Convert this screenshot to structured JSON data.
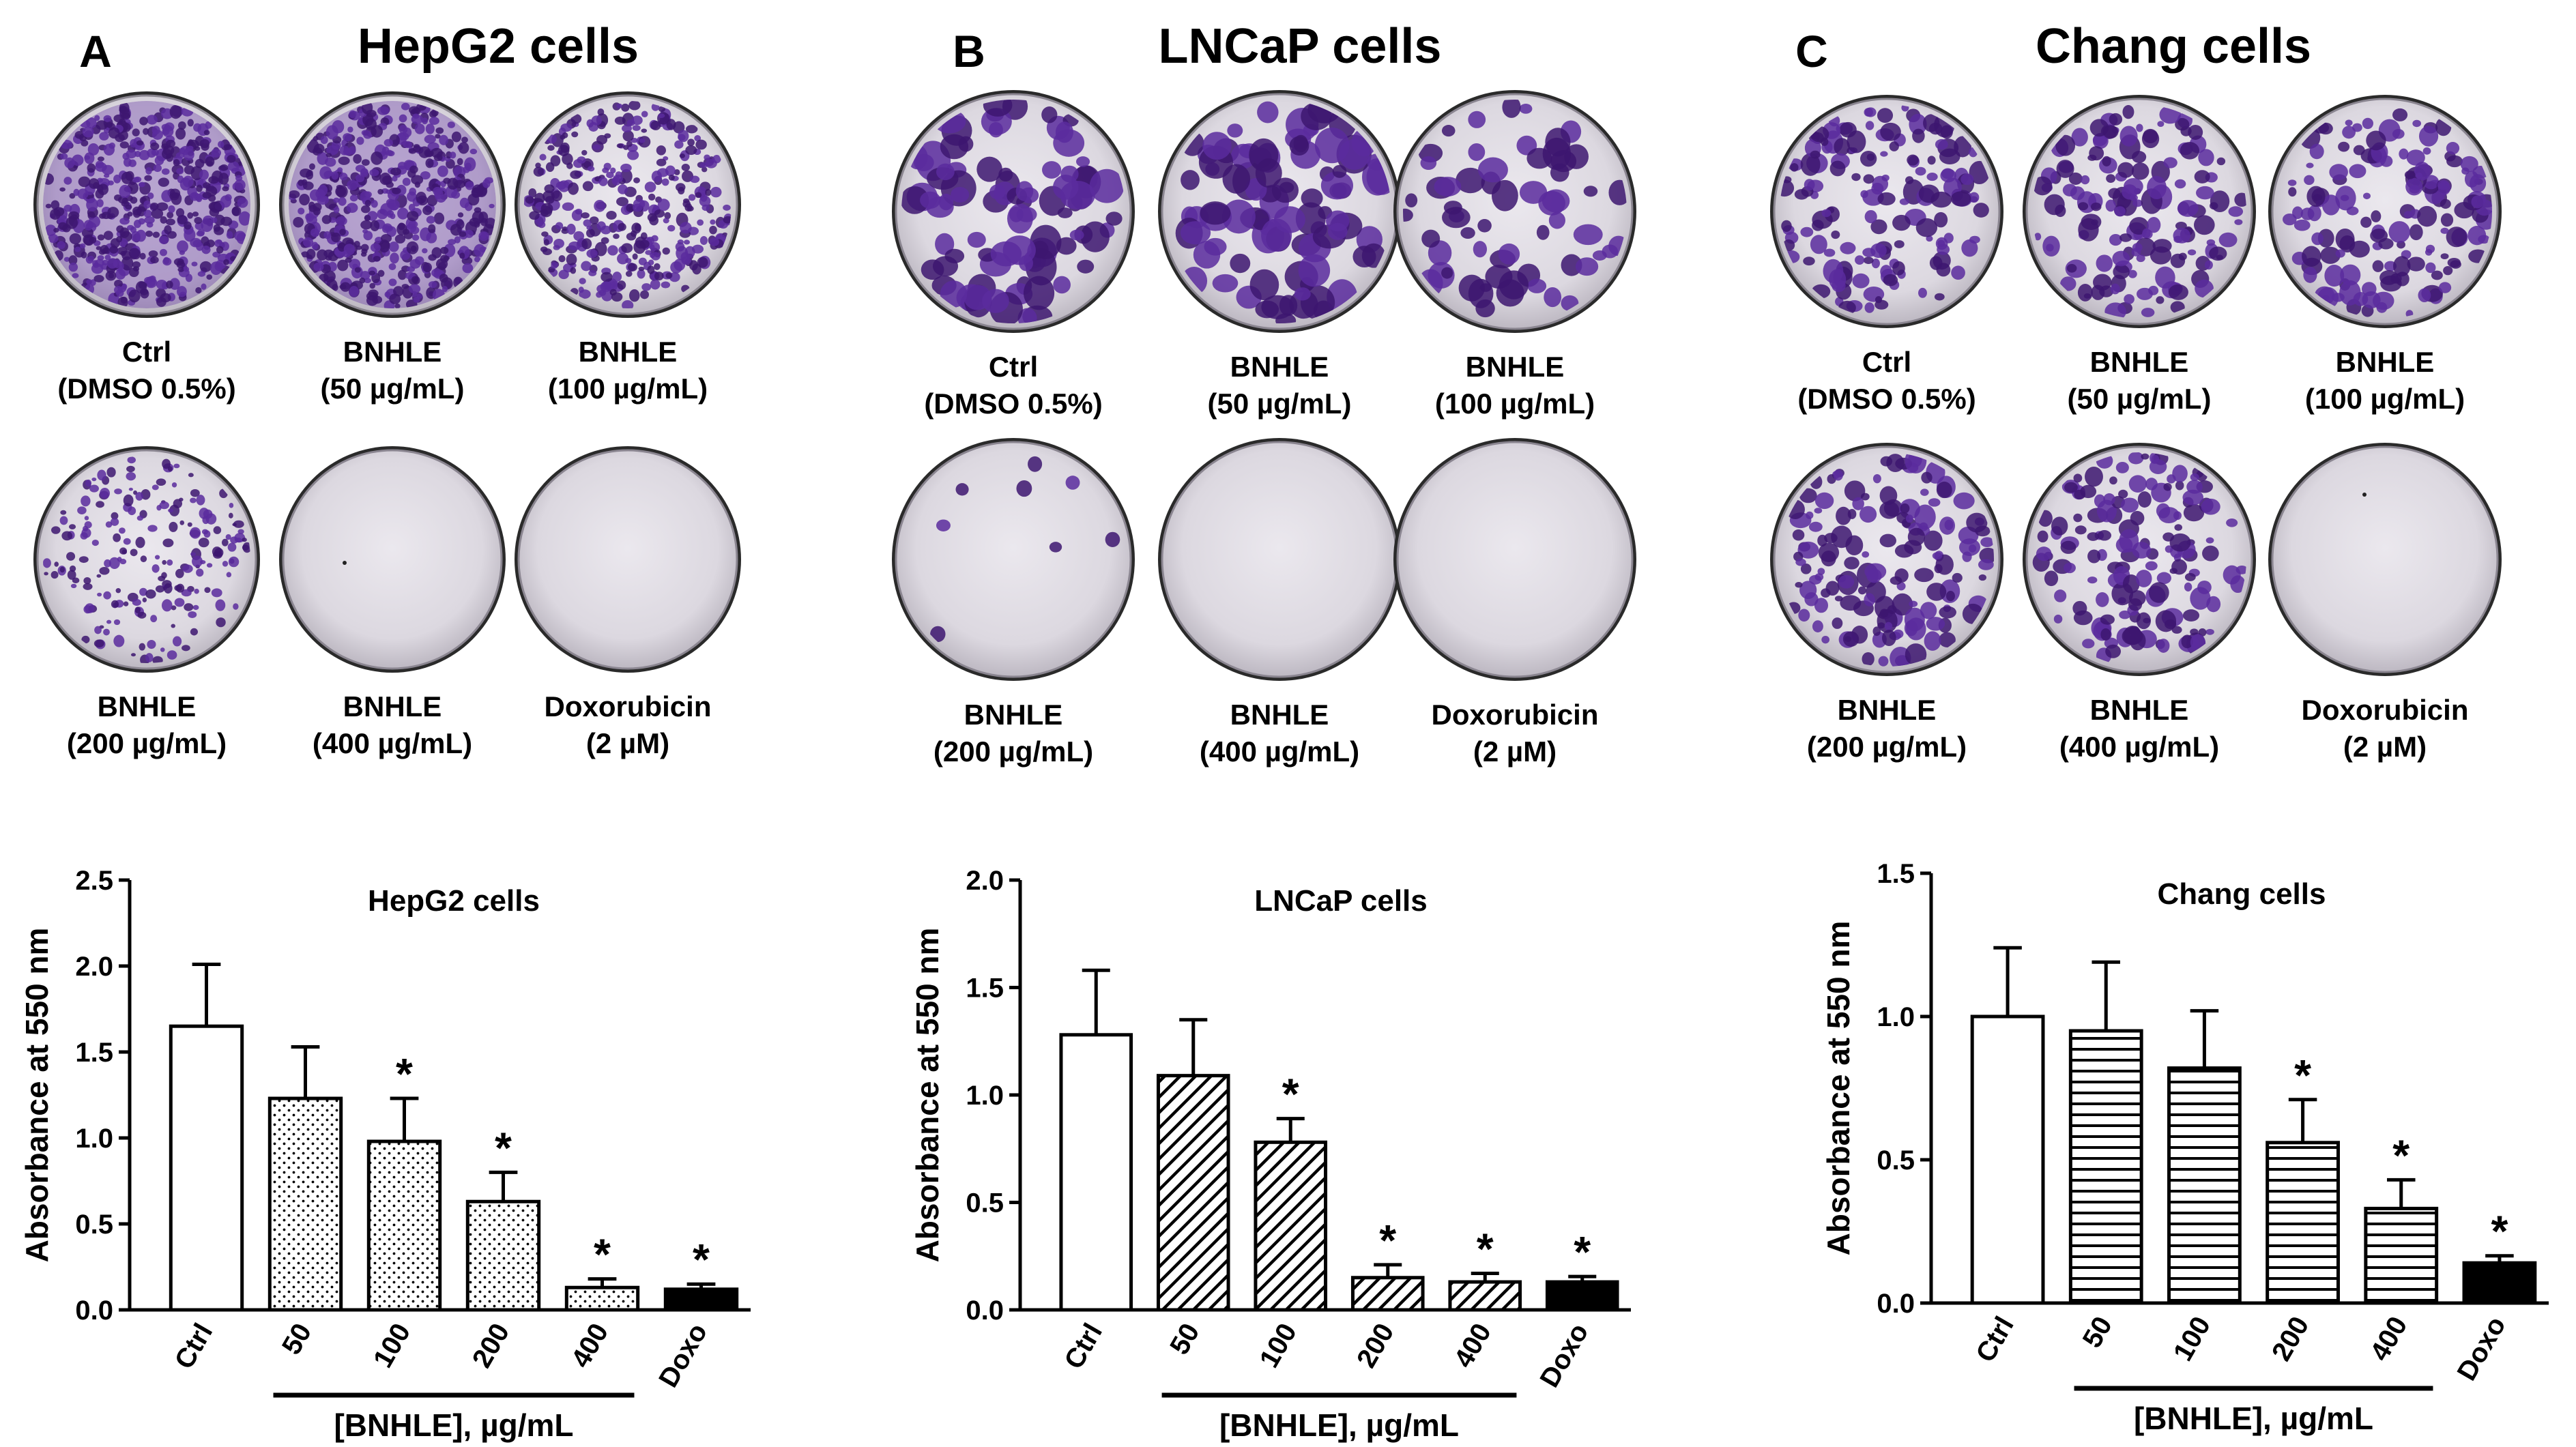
{
  "panels": [
    {
      "letter": "A",
      "title": "HepG2 cells",
      "pattern": "dots",
      "dishes": [
        {
          "line1": "Ctrl",
          "line2": "(DMSO 0.5%)",
          "density": "dense-fine"
        },
        {
          "line1": "BNHLE",
          "line2": "(50 µg/mL)",
          "density": "dense-fine"
        },
        {
          "line1": "BNHLE",
          "line2": "(100 µg/mL)",
          "density": "medium-fine"
        },
        {
          "line1": "BNHLE",
          "line2": "(200 µg/mL)",
          "density": "sparse-fine"
        },
        {
          "line1": "BNHLE",
          "line2": "(400 µg/mL)",
          "density": "none"
        },
        {
          "line1": "Doxorubicin",
          "line2": "(2 µM)",
          "density": "none"
        }
      ]
    },
    {
      "letter": "B",
      "title": "LNCaP cells",
      "pattern": "diagonal",
      "dishes": [
        {
          "line1": "Ctrl",
          "line2": "(DMSO 0.5%)",
          "density": "dense-large"
        },
        {
          "line1": "BNHLE",
          "line2": "(50 µg/mL)",
          "density": "dense-large"
        },
        {
          "line1": "BNHLE",
          "line2": "(100 µg/mL)",
          "density": "medium-large"
        },
        {
          "line1": "BNHLE",
          "line2": "(200 µg/mL)",
          "density": "few"
        },
        {
          "line1": "BNHLE",
          "line2": "(400 µg/mL)",
          "density": "none"
        },
        {
          "line1": "Doxorubicin",
          "line2": "(2 µM)",
          "density": "none"
        }
      ]
    },
    {
      "letter": "C",
      "title": "Chang cells",
      "pattern": "horizontal",
      "dishes": [
        {
          "line1": "Ctrl",
          "line2": "(DMSO 0.5%)",
          "density": "medium"
        },
        {
          "line1": "BNHLE",
          "line2": "(50 µg/mL)",
          "density": "medium"
        },
        {
          "line1": "BNHLE",
          "line2": "(100 µg/mL)",
          "density": "medium"
        },
        {
          "line1": "BNHLE",
          "line2": "(200 µg/mL)",
          "density": "medium"
        },
        {
          "line1": "BNHLE",
          "line2": "(400 µg/mL)",
          "density": "medium"
        },
        {
          "line1": "Doxorubicin",
          "line2": "(2 µM)",
          "density": "none"
        }
      ]
    }
  ],
  "colors": {
    "stain": "#5b2c9e",
    "stain_dark": "#3d1670",
    "dish_fill": "#e2dfe6",
    "dish_rim": "#3a3a3a"
  },
  "chart_data": [
    {
      "type": "bar",
      "title": "HepG2 cells",
      "ylabel": "Absorbance at 550 nm",
      "xlabel": "[BNHLE], µg/mL",
      "categories": [
        "Ctrl",
        "50",
        "100",
        "200",
        "400",
        "Doxo"
      ],
      "values": [
        1.65,
        1.23,
        0.98,
        0.63,
        0.13,
        0.12
      ],
      "errors": [
        0.36,
        0.3,
        0.25,
        0.17,
        0.05,
        0.03
      ],
      "significant": [
        false,
        false,
        true,
        true,
        true,
        true
      ],
      "significance_mark": "*",
      "ylim": [
        0,
        2.5
      ],
      "yticks": [
        "0.0",
        "0.5",
        "1.0",
        "1.5",
        "2.0",
        "2.5"
      ],
      "ytick_values": [
        0,
        0.5,
        1.0,
        1.5,
        2.0,
        2.5
      ],
      "fill_pattern": "dots"
    },
    {
      "type": "bar",
      "title": "LNCaP cells",
      "ylabel": "Absorbance at 550 nm",
      "xlabel": "[BNHLE], µg/mL",
      "categories": [
        "Ctrl",
        "50",
        "100",
        "200",
        "400",
        "Doxo"
      ],
      "values": [
        1.28,
        1.09,
        0.78,
        0.15,
        0.13,
        0.13
      ],
      "errors": [
        0.3,
        0.26,
        0.11,
        0.06,
        0.04,
        0.025
      ],
      "significant": [
        false,
        false,
        true,
        true,
        true,
        true
      ],
      "significance_mark": "*",
      "ylim": [
        0,
        2.0
      ],
      "yticks": [
        "0.0",
        "0.5",
        "1.0",
        "1.5",
        "2.0"
      ],
      "ytick_values": [
        0,
        0.5,
        1.0,
        1.5,
        2.0
      ],
      "fill_pattern": "diagonal"
    },
    {
      "type": "bar",
      "title": "Chang cells",
      "ylabel": "Absorbance at 550 nm",
      "xlabel": "[BNHLE], µg/mL",
      "categories": [
        "Ctrl",
        "50",
        "100",
        "200",
        "400",
        "Doxo"
      ],
      "values": [
        1.0,
        0.95,
        0.82,
        0.56,
        0.33,
        0.14
      ],
      "errors": [
        0.24,
        0.24,
        0.2,
        0.15,
        0.1,
        0.025
      ],
      "significant": [
        false,
        false,
        false,
        true,
        true,
        true
      ],
      "significance_mark": "*",
      "ylim": [
        0,
        1.5
      ],
      "yticks": [
        "0.0",
        "0.5",
        "1.0",
        "1.5"
      ],
      "ytick_values": [
        0,
        0.5,
        1.0,
        1.5
      ],
      "fill_pattern": "horizontal"
    }
  ]
}
